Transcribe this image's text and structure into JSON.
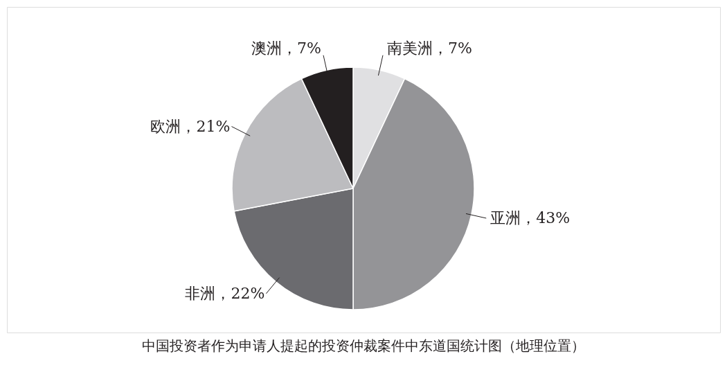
{
  "chart_data": {
    "type": "pie",
    "title": "中国投资者作为申请人提起的投资仲裁案件中东道国统计图（地理位置）",
    "categories": [
      "南美洲",
      "亚洲",
      "非洲",
      "欧洲",
      "澳洲"
    ],
    "values": [
      7,
      43,
      22,
      21,
      7
    ],
    "colors": [
      "#e0e0e2",
      "#949497",
      "#6b6b6f",
      "#bcbcbf",
      "#231f20"
    ],
    "value_labels": [
      "，7%",
      "，43%",
      "，22%",
      "，21%",
      "，7%"
    ],
    "legend": false
  }
}
